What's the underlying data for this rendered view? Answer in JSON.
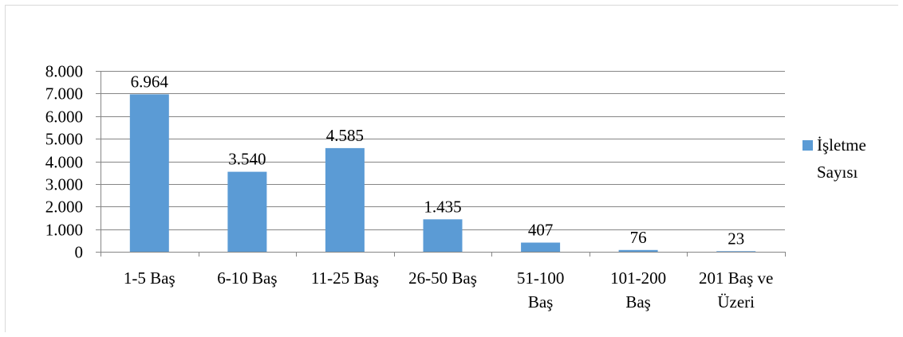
{
  "chart_data": {
    "type": "bar",
    "title": "",
    "xlabel": "",
    "ylabel": "",
    "categories": [
      [
        "1-5 Baş"
      ],
      [
        "6-10 Baş"
      ],
      [
        "11-25 Baş"
      ],
      [
        "26-50 Baş"
      ],
      [
        "51-100",
        "Baş"
      ],
      [
        "101-200",
        "Baş"
      ],
      [
        "201 Baş ve",
        "Üzeri"
      ]
    ],
    "series": [
      {
        "name": "İşletme Sayısı",
        "values": [
          6964,
          3540,
          4585,
          1435,
          407,
          76,
          23
        ],
        "value_labels": [
          "6.964",
          "3.540",
          "4.585",
          "1.435",
          "407",
          "76",
          "23"
        ],
        "color": "#5b9bd5"
      }
    ],
    "ylim": [
      0,
      8000
    ],
    "yticks": [
      {
        "value": 0,
        "label": "0"
      },
      {
        "value": 1000,
        "label": "1.000"
      },
      {
        "value": 2000,
        "label": "2.000"
      },
      {
        "value": 3000,
        "label": "3.000"
      },
      {
        "value": 4000,
        "label": "4.000"
      },
      {
        "value": 5000,
        "label": "5.000"
      },
      {
        "value": 6000,
        "label": "6.000"
      },
      {
        "value": 7000,
        "label": "7.000"
      },
      {
        "value": 8000,
        "label": "8.000"
      }
    ],
    "grid": true,
    "gridline_color": "#868686",
    "legend_position": "right",
    "legend": {
      "lines": [
        "İşletme",
        "Sayısı"
      ]
    }
  }
}
